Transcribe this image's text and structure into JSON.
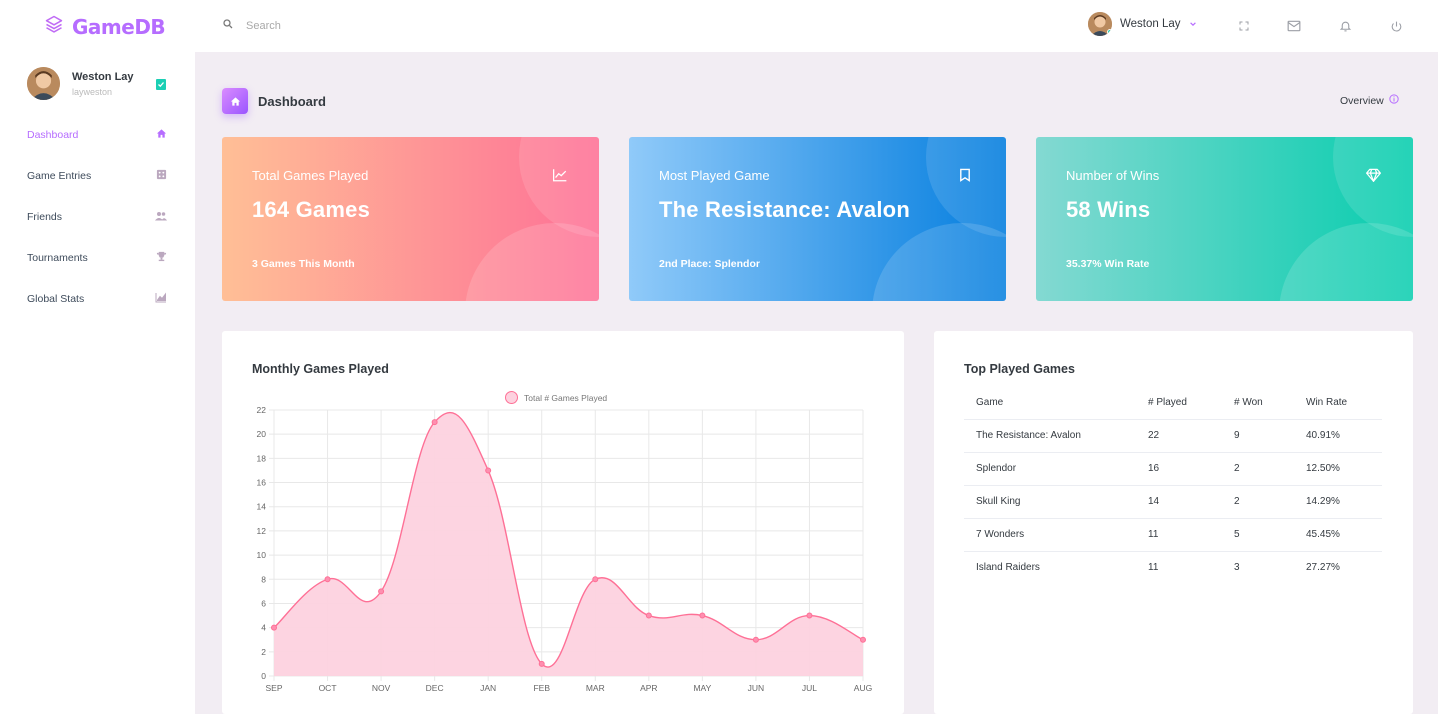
{
  "brand": {
    "name": "GameDB"
  },
  "navbar": {
    "search_placeholder": "Search",
    "user_name": "Weston Lay"
  },
  "sidebar": {
    "profile": {
      "name": "Weston Lay",
      "username": "layweston"
    },
    "items": [
      {
        "label": "Dashboard",
        "icon": "home-icon",
        "active": true
      },
      {
        "label": "Game Entries",
        "icon": "dice-icon",
        "active": false
      },
      {
        "label": "Friends",
        "icon": "users-icon",
        "active": false
      },
      {
        "label": "Tournaments",
        "icon": "trophy-icon",
        "active": false
      },
      {
        "label": "Global Stats",
        "icon": "chart-area-icon",
        "active": false
      }
    ]
  },
  "page": {
    "title": "Dashboard",
    "overview_label": "Overview"
  },
  "stats": [
    {
      "label": "Total Games Played",
      "value": "164 Games",
      "sub": "3 Games This Month",
      "icon": "chart-line-icon"
    },
    {
      "label": "Most Played Game",
      "value": "The Resistance: Avalon",
      "sub": "2nd Place: Splendor",
      "icon": "bookmark-icon"
    },
    {
      "label": "Number of Wins",
      "value": "58 Wins",
      "sub": "35.37% Win Rate",
      "icon": "diamond-icon"
    }
  ],
  "monthly_panel": {
    "title": "Monthly Games Played"
  },
  "chart_data": {
    "type": "area",
    "categories": [
      "SEP",
      "OCT",
      "NOV",
      "DEC",
      "JAN",
      "FEB",
      "MAR",
      "APR",
      "MAY",
      "JUN",
      "JUL",
      "AUG"
    ],
    "series": [
      {
        "name": "Total # Games Played",
        "values": [
          4,
          8,
          7,
          21,
          17,
          1,
          8,
          5,
          5,
          3,
          5,
          3
        ]
      }
    ],
    "yticks": [
      "0",
      "2",
      "4",
      "6",
      "8",
      "10",
      "12",
      "14",
      "16",
      "18",
      "20",
      "22"
    ],
    "ylim": [
      0,
      22
    ],
    "grid": true,
    "legend": "top-center",
    "colors": {
      "line": "#fe7096",
      "fill": "#fdd2df"
    }
  },
  "top_games": {
    "title": "Top Played Games",
    "columns": [
      "Game",
      "# Played",
      "# Won",
      "Win Rate"
    ],
    "rows": [
      [
        "The Resistance: Avalon",
        "22",
        "9",
        "40.91%"
      ],
      [
        "Splendor",
        "16",
        "2",
        "12.50%"
      ],
      [
        "Skull King",
        "14",
        "2",
        "14.29%"
      ],
      [
        "7 Wonders",
        "11",
        "5",
        "45.45%"
      ],
      [
        "Island Raiders",
        "11",
        "3",
        "27.27%"
      ]
    ]
  },
  "colors": {
    "accent": "#b66dff",
    "background": "#f2edf3",
    "status_online": "#1bcfb4"
  }
}
